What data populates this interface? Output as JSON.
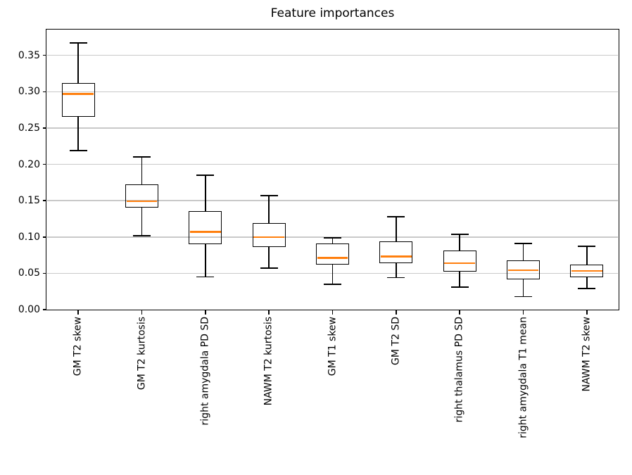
{
  "chart_data": {
    "type": "boxplot",
    "title": "Feature importances",
    "xlabel": "",
    "ylabel": "",
    "grid": true,
    "legend": "none",
    "ylim": [
      0.0,
      0.3855
    ],
    "yticks": [
      0.0,
      0.05,
      0.1,
      0.15,
      0.2,
      0.25,
      0.3,
      0.35
    ],
    "ytick_labels": [
      "0.00",
      "0.05",
      "0.10",
      "0.15",
      "0.20",
      "0.25",
      "0.30",
      "0.35"
    ],
    "categories": [
      "GM T2 skew",
      "GM T2 kurtosis",
      "right amygdala PD SD",
      "NAWM T2 kurtosis",
      "GM T1 skew",
      "GM T2 SD",
      "right thalamus PD SD",
      "right amygdala T1 mean",
      "NAWM T2 skew"
    ],
    "series": [
      {
        "name": "GM T2 skew",
        "whisker_low": 0.219,
        "q1": 0.265,
        "median": 0.297,
        "q3": 0.312,
        "whisker_high": 0.367
      },
      {
        "name": "GM T2 kurtosis",
        "whisker_low": 0.102,
        "q1": 0.14,
        "median": 0.149,
        "q3": 0.172,
        "whisker_high": 0.21
      },
      {
        "name": "right amygdala PD SD",
        "whisker_low": 0.045,
        "q1": 0.09,
        "median": 0.107,
        "q3": 0.136,
        "whisker_high": 0.185
      },
      {
        "name": "NAWM T2 kurtosis",
        "whisker_low": 0.057,
        "q1": 0.086,
        "median": 0.1,
        "q3": 0.119,
        "whisker_high": 0.157
      },
      {
        "name": "GM T1 skew",
        "whisker_low": 0.035,
        "q1": 0.062,
        "median": 0.071,
        "q3": 0.091,
        "whisker_high": 0.099
      },
      {
        "name": "GM T2 SD",
        "whisker_low": 0.044,
        "q1": 0.064,
        "median": 0.073,
        "q3": 0.094,
        "whisker_high": 0.128
      },
      {
        "name": "right thalamus PD SD",
        "whisker_low": 0.031,
        "q1": 0.052,
        "median": 0.064,
        "q3": 0.081,
        "whisker_high": 0.104
      },
      {
        "name": "right amygdala T1 mean",
        "whisker_low": 0.018,
        "q1": 0.042,
        "median": 0.054,
        "q3": 0.068,
        "whisker_high": 0.091
      },
      {
        "name": "NAWM T2 skew",
        "whisker_low": 0.029,
        "q1": 0.045,
        "median": 0.053,
        "q3": 0.062,
        "whisker_high": 0.087
      }
    ],
    "colors": {
      "median": "#ff7f0e",
      "box": "#000000",
      "grid": "#c9c9c9",
      "text": "#000000",
      "background": "#ffffff"
    }
  }
}
